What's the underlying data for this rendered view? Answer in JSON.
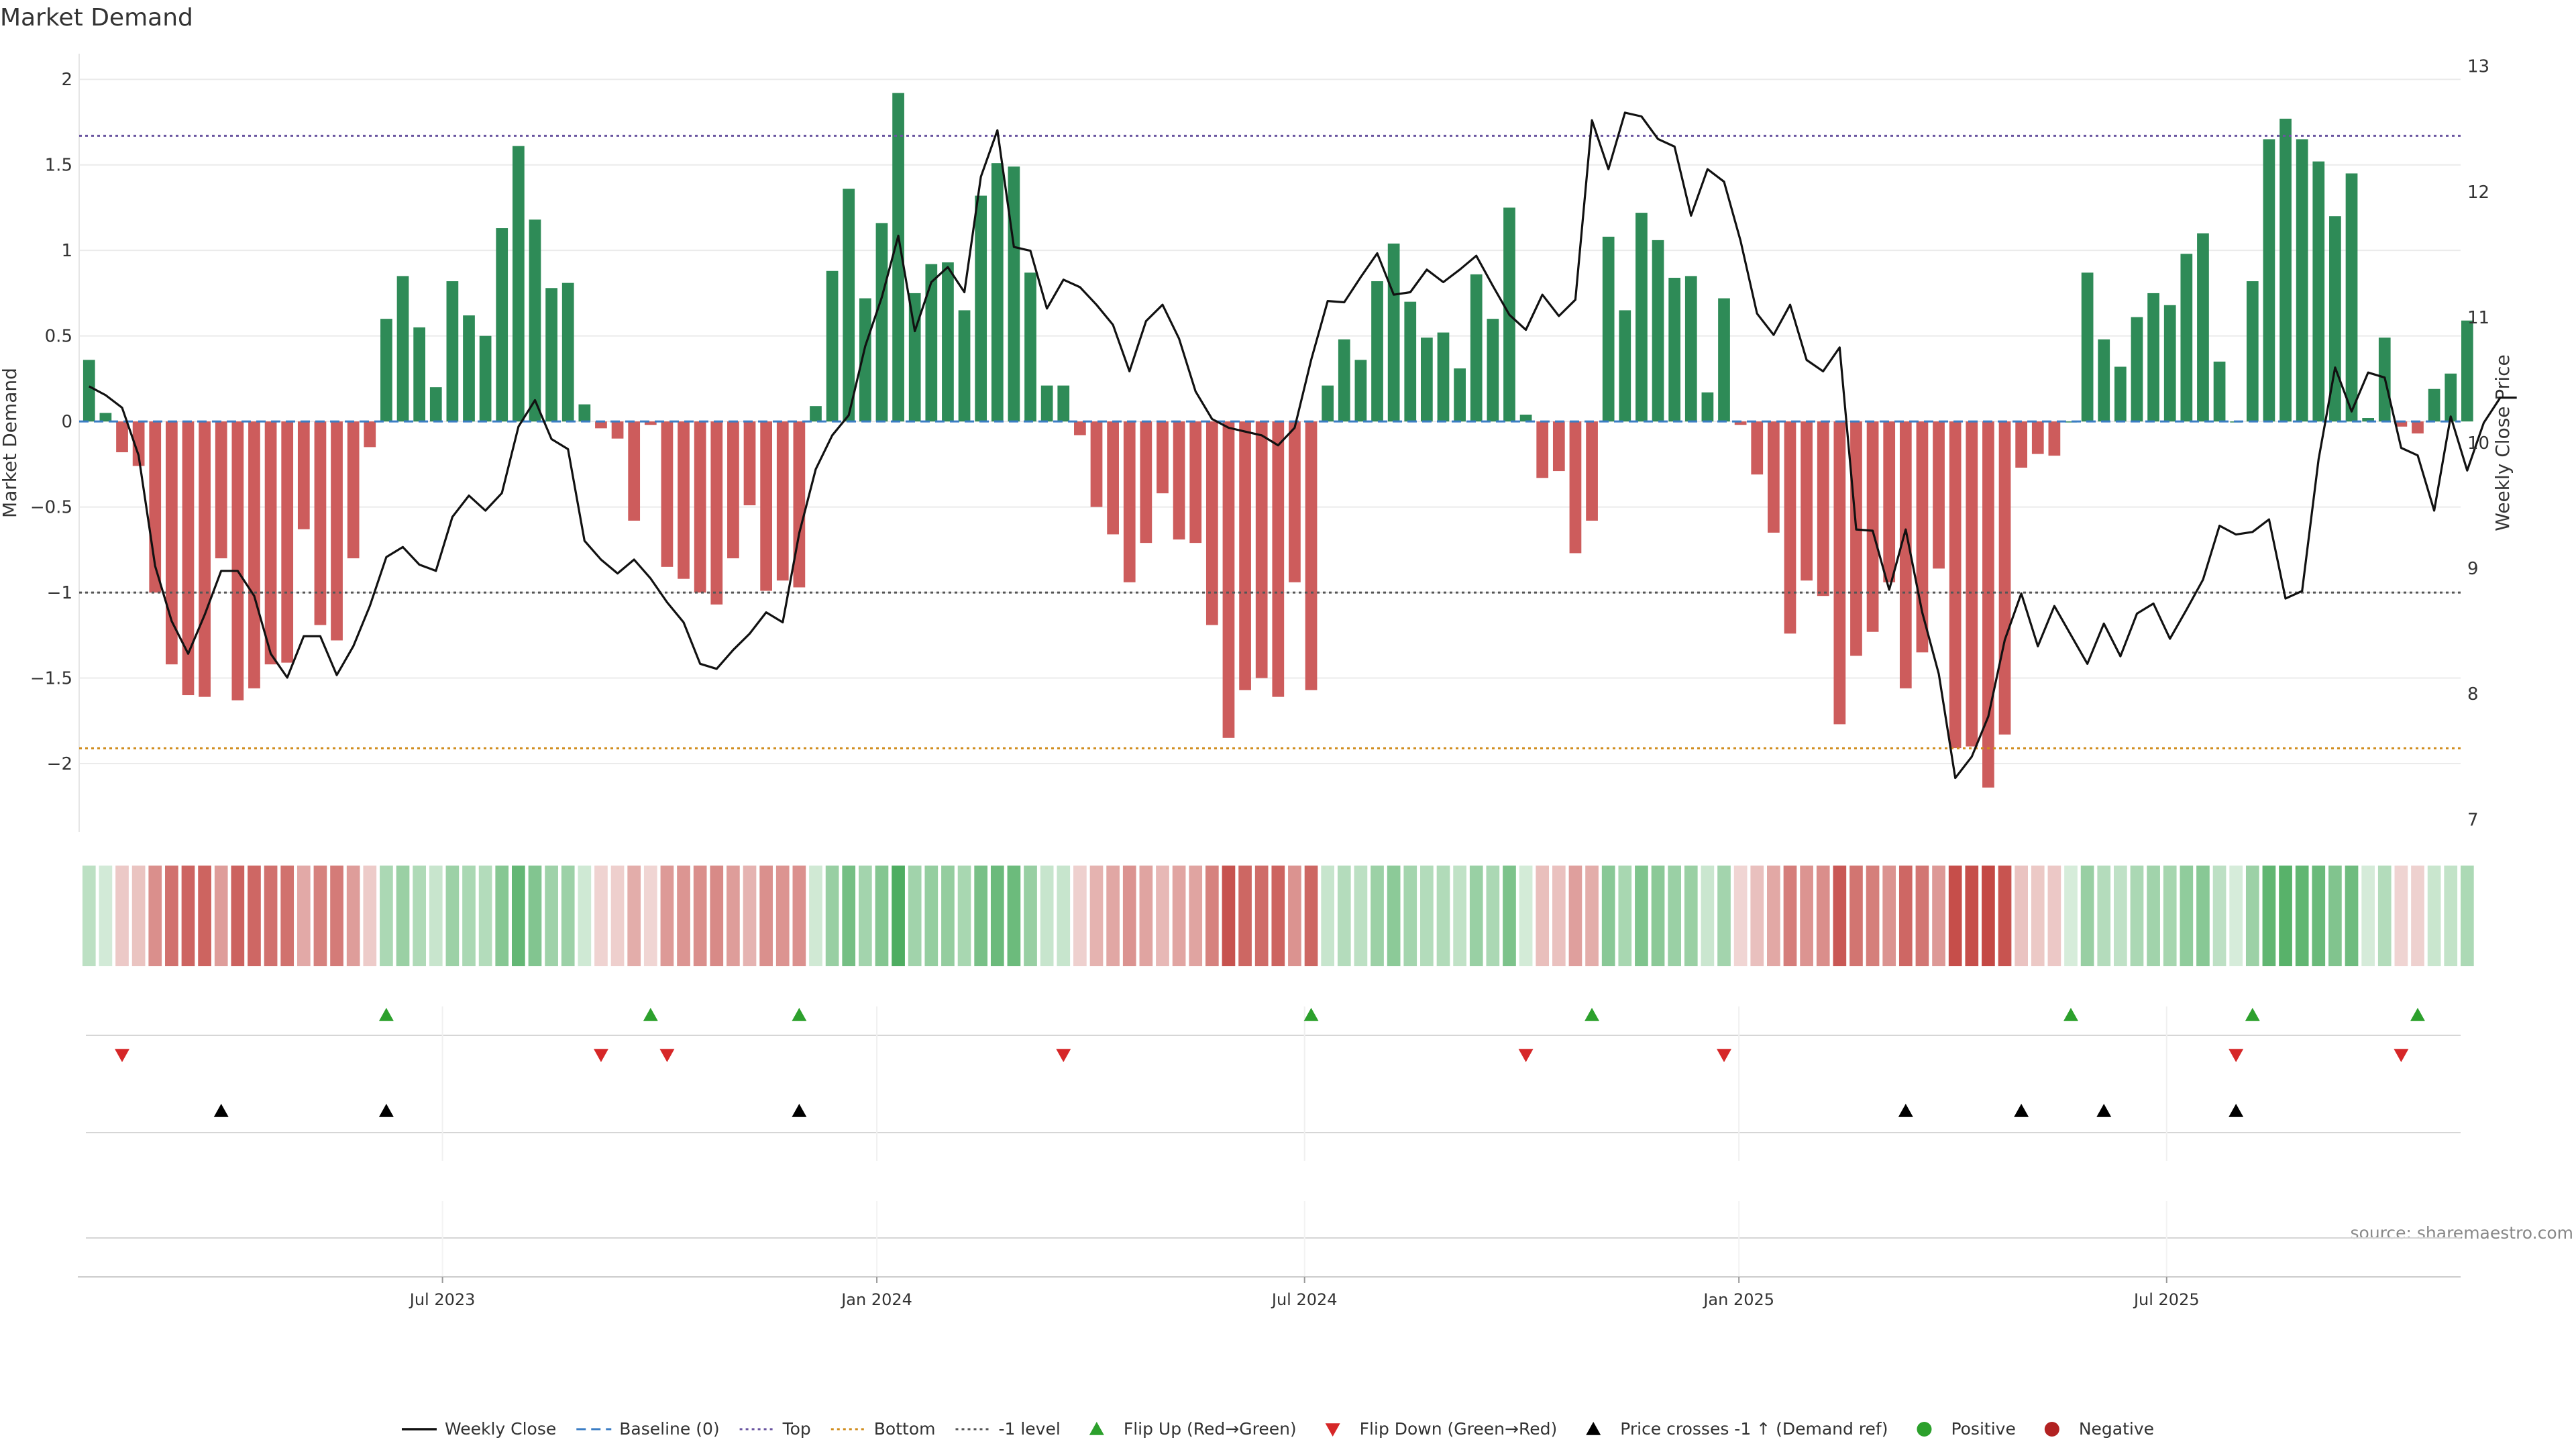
{
  "chart_data": {
    "type": "bar",
    "title": "Market Demand",
    "ylabel": "Market Demand",
    "y2label": "Weekly Close Price",
    "ylim": [
      -2.4,
      2.15
    ],
    "y2lim": [
      6.9,
      13.1
    ],
    "yticks": [
      -2,
      -1.5,
      -1,
      -0.5,
      0,
      0.5,
      1,
      1.5,
      2
    ],
    "ytick_labels": [
      "−2",
      "−1.5",
      "−1",
      "−0.5",
      "0",
      "0.5",
      "1",
      "1.5",
      "2"
    ],
    "y2ticks": [
      7,
      8,
      9,
      10,
      11,
      12,
      13
    ],
    "y2tick_labels": [
      "7",
      "8",
      "9",
      "10",
      "11",
      "12",
      "13"
    ],
    "x_range_weeks": [
      -0.6,
      143.6
    ],
    "xticks": [
      {
        "label": "Jul 2023",
        "week": 21.4
      },
      {
        "label": "Jan 2024",
        "week": 47.7
      },
      {
        "label": "Jul 2024",
        "week": 73.6
      },
      {
        "label": "Jan 2025",
        "week": 99.9
      },
      {
        "label": "Jul 2025",
        "week": 125.8
      }
    ],
    "levels": {
      "top": 1.67,
      "bottom": -1.91,
      "minus_one": -1
    },
    "demand": [
      0.36,
      0.05,
      -0.18,
      -0.26,
      -1.0,
      -1.42,
      -1.6,
      -1.61,
      -0.8,
      -1.63,
      -1.56,
      -1.42,
      -1.41,
      -0.63,
      -1.19,
      -1.28,
      -0.8,
      -0.15,
      0.6,
      0.85,
      0.55,
      0.2,
      0.82,
      0.62,
      0.5,
      1.13,
      1.61,
      1.18,
      0.78,
      0.81,
      0.1,
      -0.04,
      -0.1,
      -0.58,
      -0.02,
      -0.85,
      -0.92,
      -1.0,
      -1.07,
      -0.8,
      -0.49,
      -0.99,
      -0.93,
      -0.97,
      0.09,
      0.88,
      1.36,
      0.72,
      1.16,
      1.92,
      0.75,
      0.92,
      0.93,
      0.65,
      1.32,
      1.51,
      1.49,
      0.87,
      0.21,
      0.21,
      -0.08,
      -0.5,
      -0.66,
      -0.94,
      -0.71,
      -0.42,
      -0.69,
      -0.71,
      -1.19,
      -1.85,
      -1.57,
      -1.5,
      -1.61,
      -0.94,
      -1.57,
      0.21,
      0.48,
      0.36,
      0.82,
      1.04,
      0.7,
      0.49,
      0.52,
      0.31,
      0.86,
      0.6,
      1.25,
      0.04,
      -0.33,
      -0.29,
      -0.77,
      -0.58,
      1.08,
      0.65,
      1.22,
      1.06,
      0.84,
      0.85,
      0.17,
      0.72,
      -0.02,
      -0.31,
      -0.65,
      -1.24,
      -0.93,
      -1.02,
      -1.77,
      -1.37,
      -1.23,
      -0.94,
      -1.56,
      -1.35,
      -0.86,
      -1.91,
      -1.9,
      -2.14,
      -1.83,
      -0.27,
      -0.19,
      -0.2,
      0.0,
      0.87,
      0.48,
      0.32,
      0.61,
      0.75,
      0.68,
      0.98,
      1.1,
      0.35,
      0.0,
      0.82,
      1.65,
      1.77,
      1.65,
      1.52,
      1.2,
      1.45,
      0.02,
      0.49,
      -0.03,
      -0.07,
      0.19,
      0.28,
      0.59
    ],
    "weekly_close": [
      10.45,
      10.38,
      10.28,
      9.9,
      9.02,
      8.58,
      8.32,
      8.63,
      8.98,
      8.98,
      8.78,
      8.32,
      8.13,
      8.46,
      8.46,
      8.15,
      8.38,
      8.7,
      9.09,
      9.17,
      9.03,
      8.98,
      9.41,
      9.58,
      9.46,
      9.6,
      10.13,
      10.34,
      10.03,
      9.95,
      9.22,
      9.07,
      8.96,
      9.07,
      8.92,
      8.73,
      8.57,
      8.24,
      8.2,
      8.35,
      8.48,
      8.65,
      8.57,
      9.28,
      9.79,
      10.06,
      10.22,
      10.77,
      11.16,
      11.65,
      10.89,
      11.28,
      11.4,
      11.2,
      12.12,
      12.49,
      11.56,
      11.53,
      11.07,
      11.3,
      11.24,
      11.1,
      10.94,
      10.57,
      10.97,
      11.1,
      10.83,
      10.41,
      10.19,
      10.12,
      10.09,
      10.06,
      9.98,
      10.12,
      10.66,
      11.13,
      11.12,
      11.32,
      11.51,
      11.18,
      11.2,
      11.38,
      11.28,
      11.38,
      11.49,
      11.25,
      11.02,
      10.9,
      11.18,
      11.01,
      11.14,
      12.57,
      12.18,
      12.63,
      12.6,
      12.42,
      12.36,
      11.81,
      12.18,
      12.08,
      11.61,
      11.03,
      10.86,
      11.1,
      10.66,
      10.57,
      10.76,
      9.31,
      9.3,
      8.83,
      9.31,
      8.65,
      8.16,
      7.33,
      7.5,
      7.82,
      8.43,
      8.8,
      8.38,
      8.7,
      8.47,
      8.24,
      8.56,
      8.3,
      8.64,
      8.72,
      8.44,
      8.67,
      8.91,
      9.34,
      9.27,
      9.29,
      9.39,
      8.76,
      8.82,
      9.87,
      10.6,
      10.25,
      10.56,
      10.52,
      9.96,
      9.9,
      9.46,
      10.21,
      9.78,
      10.16,
      10.36,
      10.36
    ],
    "flip_up_weeks": [
      18,
      34,
      43,
      74,
      91,
      120,
      131,
      141
    ],
    "flip_down_weeks": [
      2,
      31,
      35,
      59,
      87,
      99,
      130,
      140
    ],
    "price_cross_up_weeks": [
      8,
      18,
      43,
      110,
      117,
      122,
      130
    ],
    "legend": [
      {
        "label": "Weekly Close",
        "kind": "line",
        "color": "#111111"
      },
      {
        "label": "Baseline (0)",
        "kind": "dashed",
        "color": "#3b7dc4"
      },
      {
        "label": "Top",
        "kind": "dotted",
        "color": "#6a55a0"
      },
      {
        "label": "Bottom",
        "kind": "dotted",
        "color": "#d08c1c"
      },
      {
        "label": "-1 level",
        "kind": "dotted",
        "color": "#555555"
      },
      {
        "label": "Flip Up (Red→Green)",
        "kind": "tri-up",
        "color": "#2ca02c"
      },
      {
        "label": "Flip Down (Green→Red)",
        "kind": "tri-down",
        "color": "#d62728"
      },
      {
        "label": "Price crosses -1 ↑ (Demand ref)",
        "kind": "tri-up",
        "color": "#000000"
      },
      {
        "label": "Positive",
        "kind": "dot",
        "color": "#2ca02c"
      },
      {
        "label": "Negative",
        "kind": "dot",
        "color": "#b22222"
      }
    ],
    "source": "source: sharemaestro.com",
    "colors": {
      "positive_bar": "#2e8b57",
      "negative_bar": "#cd5c5c",
      "price_line": "#111111",
      "baseline": "#3b7dc4",
      "top": "#6a55a0",
      "bottom": "#d08c1c",
      "minus_one": "#555555",
      "flip_up": "#2ca02c",
      "flip_down": "#d62728",
      "cross": "#000000"
    }
  }
}
